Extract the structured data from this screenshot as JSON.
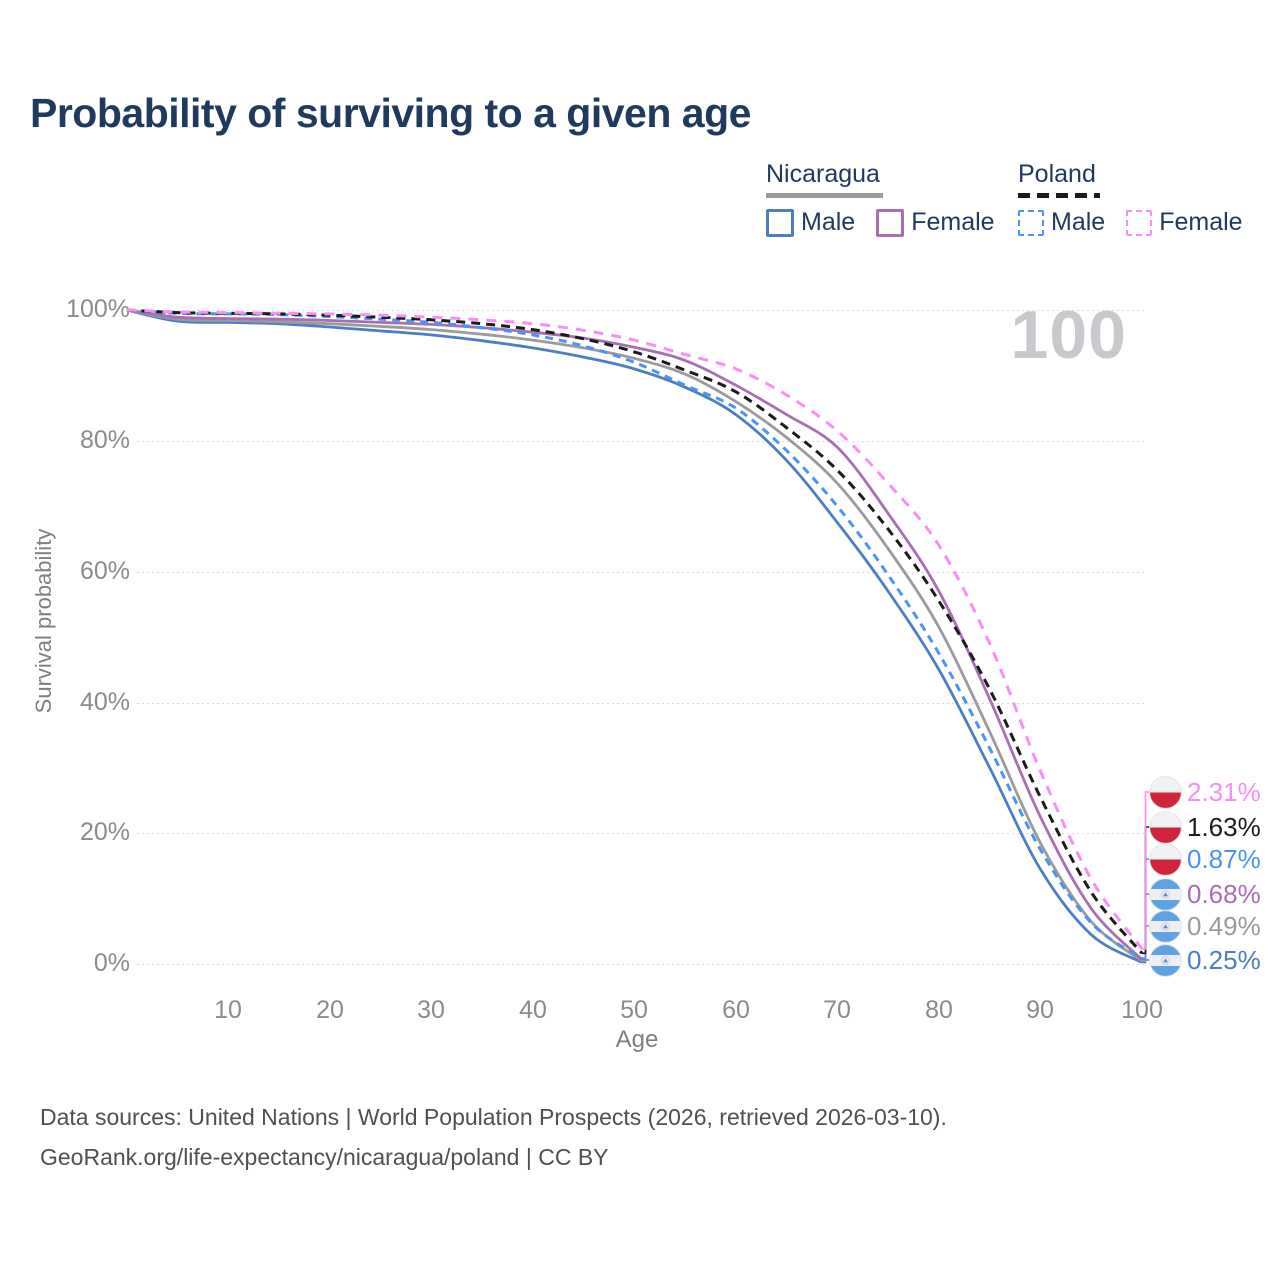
{
  "page": {
    "title": "Probability of surviving to a given age",
    "watermark_age": "100",
    "footer_line1": "Data sources: United Nations | World Population Prospects (2026, retrieved 2026-03-10).",
    "footer_line2": "GeoRank.org/life-expectancy/nicaragua/poland | CC BY"
  },
  "legend": {
    "nicaragua": {
      "label": "Nicaragua",
      "style": "solid",
      "line_color": "#9b9b9b",
      "male_label": "Male",
      "male_color": "#4d7ec2",
      "female_label": "Female",
      "female_color": "#a86fb4"
    },
    "poland": {
      "label": "Poland",
      "style": "dashed",
      "line_color": "#1b1b1b",
      "male_label": "Male",
      "male_color": "#4b93f5",
      "female_label": "Female",
      "female_color": "#f98ef2"
    }
  },
  "chart_data": {
    "type": "line",
    "title": "Probability of surviving to a given age",
    "xlabel": "Age",
    "ylabel": "Survival probability",
    "xlim": [
      0,
      100
    ],
    "ylim": [
      0,
      100
    ],
    "grid": "horizontal-dotted",
    "legend_position": "top-right",
    "x_ticks": [
      "10",
      "20",
      "30",
      "40",
      "50",
      "60",
      "70",
      "80",
      "90",
      "100"
    ],
    "y_ticks": [
      "100%",
      "80%",
      "60%",
      "40%",
      "20%",
      "0%"
    ],
    "x": [
      0,
      5,
      10,
      15,
      20,
      25,
      30,
      35,
      40,
      45,
      50,
      55,
      60,
      65,
      70,
      75,
      80,
      85,
      90,
      95,
      100
    ],
    "series": [
      {
        "id": "nicaragua-male",
        "name": "Nicaragua Male",
        "country": "nicaragua",
        "sex": "male",
        "color": "#4d7ec2",
        "line_style": "solid",
        "values": [
          100,
          98.3,
          98.1,
          97.9,
          97.4,
          96.8,
          96.2,
          95.3,
          94.2,
          92.8,
          91.0,
          88.2,
          84.0,
          77.0,
          67.5,
          57.0,
          45.0,
          30.0,
          14.5,
          4.5,
          0.25
        ],
        "end_label": "0.25%"
      },
      {
        "id": "nicaragua-total",
        "name": "Nicaragua",
        "country": "nicaragua",
        "sex": "both",
        "color": "#9b9b9b",
        "line_style": "solid",
        "values": [
          100,
          98.6,
          98.4,
          98.2,
          97.9,
          97.5,
          97.0,
          96.3,
          95.4,
          94.2,
          92.6,
          90.2,
          86.0,
          80.5,
          73.5,
          63.5,
          51.5,
          35.5,
          18.5,
          6.5,
          0.49
        ],
        "end_label": "0.49%"
      },
      {
        "id": "nicaragua-female",
        "name": "Nicaragua Female",
        "country": "nicaragua",
        "sex": "female",
        "color": "#a86fb4",
        "line_style": "solid",
        "values": [
          100,
          98.9,
          98.7,
          98.6,
          98.4,
          98.1,
          97.8,
          97.3,
          96.6,
          95.7,
          94.3,
          92.3,
          88.5,
          84.0,
          79.0,
          68.9,
          57.0,
          40.5,
          22.5,
          8.5,
          0.68
        ],
        "end_label": "0.68%"
      },
      {
        "id": "poland-male",
        "name": "Poland Male",
        "country": "poland",
        "sex": "male",
        "color": "#4b93f5",
        "line_style": "dashed",
        "values": [
          100,
          99.5,
          99.4,
          99.3,
          99.0,
          98.6,
          98.1,
          97.3,
          96.2,
          94.5,
          92.0,
          88.5,
          85.0,
          78.5,
          70.0,
          59.5,
          47.5,
          33.0,
          17.5,
          6.3,
          0.87
        ],
        "end_label": "0.87%"
      },
      {
        "id": "poland-total",
        "name": "Poland",
        "country": "poland",
        "sex": "both",
        "color": "#1b1b1b",
        "line_style": "dashed",
        "values": [
          100,
          99.6,
          99.5,
          99.4,
          99.2,
          98.9,
          98.5,
          97.9,
          97.0,
          95.6,
          93.6,
          90.8,
          87.5,
          82.0,
          75.5,
          66.5,
          55.5,
          42.0,
          25.5,
          11.0,
          1.63
        ],
        "end_label": "1.63%"
      },
      {
        "id": "poland-female",
        "name": "Poland Female",
        "country": "poland",
        "sex": "female",
        "color": "#f98ef2",
        "line_style": "dashed",
        "values": [
          100,
          99.7,
          99.6,
          99.5,
          99.4,
          99.2,
          98.9,
          98.5,
          97.9,
          96.9,
          95.4,
          93.2,
          91.0,
          87.0,
          81.5,
          73.5,
          64.0,
          49.0,
          29.5,
          13.0,
          2.31
        ],
        "end_label": "2.31%"
      }
    ]
  }
}
